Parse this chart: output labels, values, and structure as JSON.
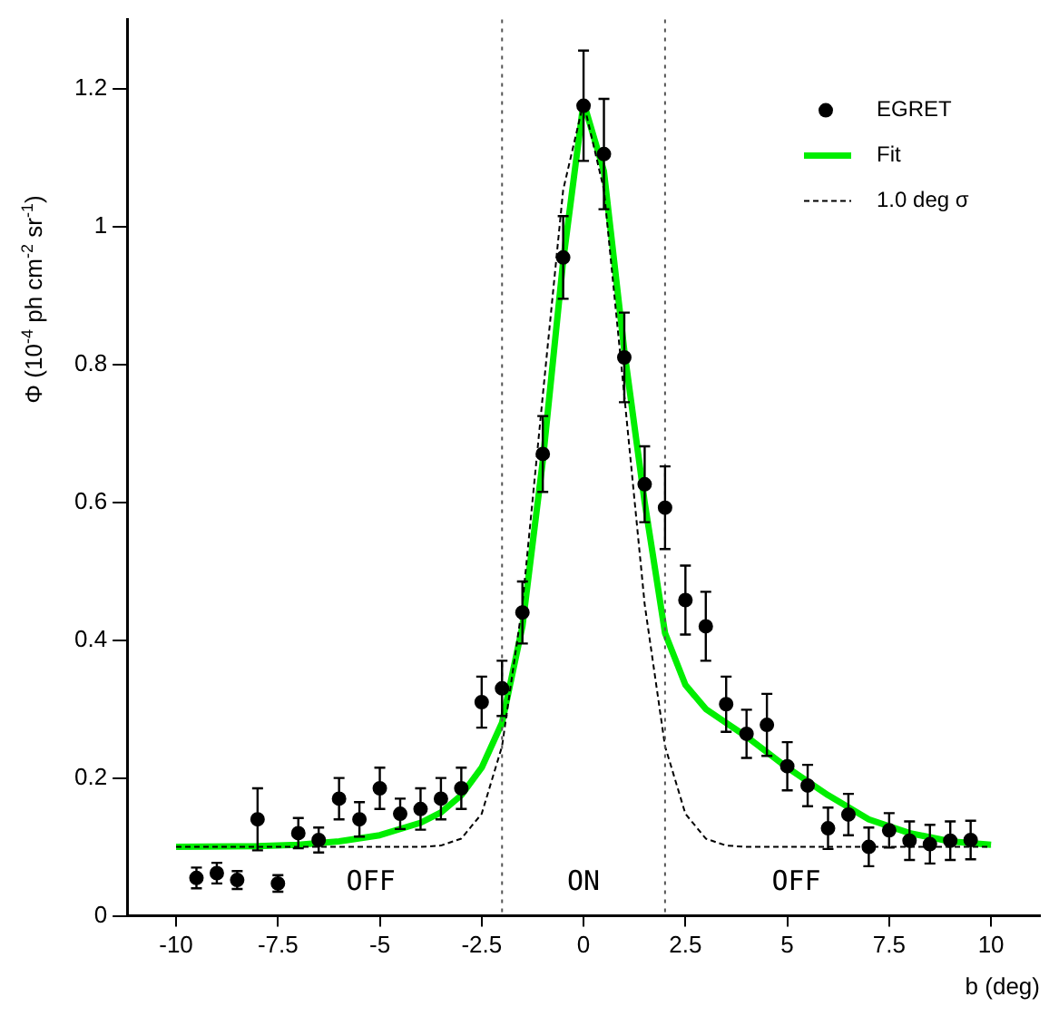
{
  "chart_data": {
    "type": "scatter",
    "xlabel": "b (deg)",
    "ylabel": "Φ  (10$^{-4}$ ph cm$^{-2}$ sr$^{-1}$)",
    "xlim": [
      -11.2,
      11.2
    ],
    "ylim": [
      0,
      1.3
    ],
    "xticks": [
      -10,
      -7.5,
      -5,
      -2.5,
      0,
      2.5,
      5,
      7.5,
      10
    ],
    "yticks": [
      0,
      0.2,
      0.4,
      0.6,
      0.8,
      1,
      1.2
    ],
    "grid": false,
    "legend": "top right",
    "series": [
      {
        "name": "EGRET",
        "type": "scatter",
        "color": "#000000",
        "marker": "circle",
        "x": [
          -9.5,
          -9,
          -8.5,
          -8,
          -7.5,
          -7,
          -6.5,
          -6,
          -5.5,
          -5,
          -4.5,
          -4,
          -3.5,
          -3,
          -2.5,
          -2,
          -1.5,
          -1,
          -0.5,
          0,
          0.5,
          1,
          1.5,
          2,
          2.5,
          3,
          3.5,
          4,
          4.5,
          5,
          5.5,
          6,
          6.5,
          7,
          7.5,
          8,
          8.5,
          9,
          9.5
        ],
        "values": [
          0.055,
          0.062,
          0.052,
          0.14,
          0.047,
          0.12,
          0.11,
          0.17,
          0.14,
          0.185,
          0.148,
          0.155,
          0.17,
          0.185,
          0.31,
          0.33,
          0.44,
          0.67,
          0.955,
          1.175,
          1.105,
          0.81,
          0.626,
          0.592,
          0.458,
          0.42,
          0.307,
          0.264,
          0.277,
          0.217,
          0.189,
          0.127,
          0.147,
          0.1,
          0.124,
          0.109,
          0.104,
          0.109,
          0.11
        ],
        "errors": [
          0.015,
          0.015,
          0.013,
          0.045,
          0.012,
          0.022,
          0.018,
          0.03,
          0.025,
          0.03,
          0.022,
          0.03,
          0.03,
          0.03,
          0.037,
          0.04,
          0.045,
          0.055,
          0.06,
          0.08,
          0.08,
          0.065,
          0.055,
          0.06,
          0.05,
          0.05,
          0.04,
          0.035,
          0.045,
          0.035,
          0.03,
          0.03,
          0.03,
          0.028,
          0.025,
          0.028,
          0.028,
          0.028,
          0.028
        ]
      },
      {
        "name": "Fit",
        "type": "line",
        "color": "#00ee00",
        "marker": "none",
        "line_style": "solid",
        "x": [
          -10,
          -8,
          -7,
          -6,
          -5,
          -4,
          -3.5,
          -3,
          -2.5,
          -2,
          -1.5,
          -1,
          -0.5,
          0,
          0.5,
          1,
          1.5,
          2,
          2.5,
          3,
          3.5,
          4,
          5,
          6,
          7,
          8,
          9,
          10
        ],
        "values": [
          0.1,
          0.101,
          0.103,
          0.108,
          0.117,
          0.135,
          0.15,
          0.175,
          0.215,
          0.28,
          0.42,
          0.66,
          0.95,
          1.18,
          1.08,
          0.82,
          0.6,
          0.41,
          0.335,
          0.3,
          0.28,
          0.26,
          0.215,
          0.175,
          0.14,
          0.12,
          0.108,
          0.103
        ]
      },
      {
        "name": "1.0 deg σ",
        "type": "line",
        "color": "#000000",
        "marker": "none",
        "line_style": "dashed",
        "x": [
          -10,
          -5,
          -4,
          -3.5,
          -3,
          -2.5,
          -2,
          -1.5,
          -1,
          -0.5,
          0,
          0.5,
          1,
          1.5,
          2,
          2.5,
          3,
          3.5,
          4,
          5,
          10
        ],
        "values": [
          0.1,
          0.1,
          0.1,
          0.102,
          0.112,
          0.148,
          0.246,
          0.452,
          0.755,
          1.053,
          1.18,
          1.053,
          0.755,
          0.452,
          0.246,
          0.148,
          0.112,
          0.102,
          0.1,
          0.1,
          0.1
        ]
      }
    ],
    "ref_lines": [
      {
        "axis": "x",
        "value": -2,
        "line_style": "dotted",
        "color": "#555555"
      },
      {
        "axis": "x",
        "value": 2,
        "line_style": "dotted",
        "color": "#555555"
      }
    ],
    "annotations": [
      "OFF",
      "ON",
      "OFF"
    ]
  }
}
